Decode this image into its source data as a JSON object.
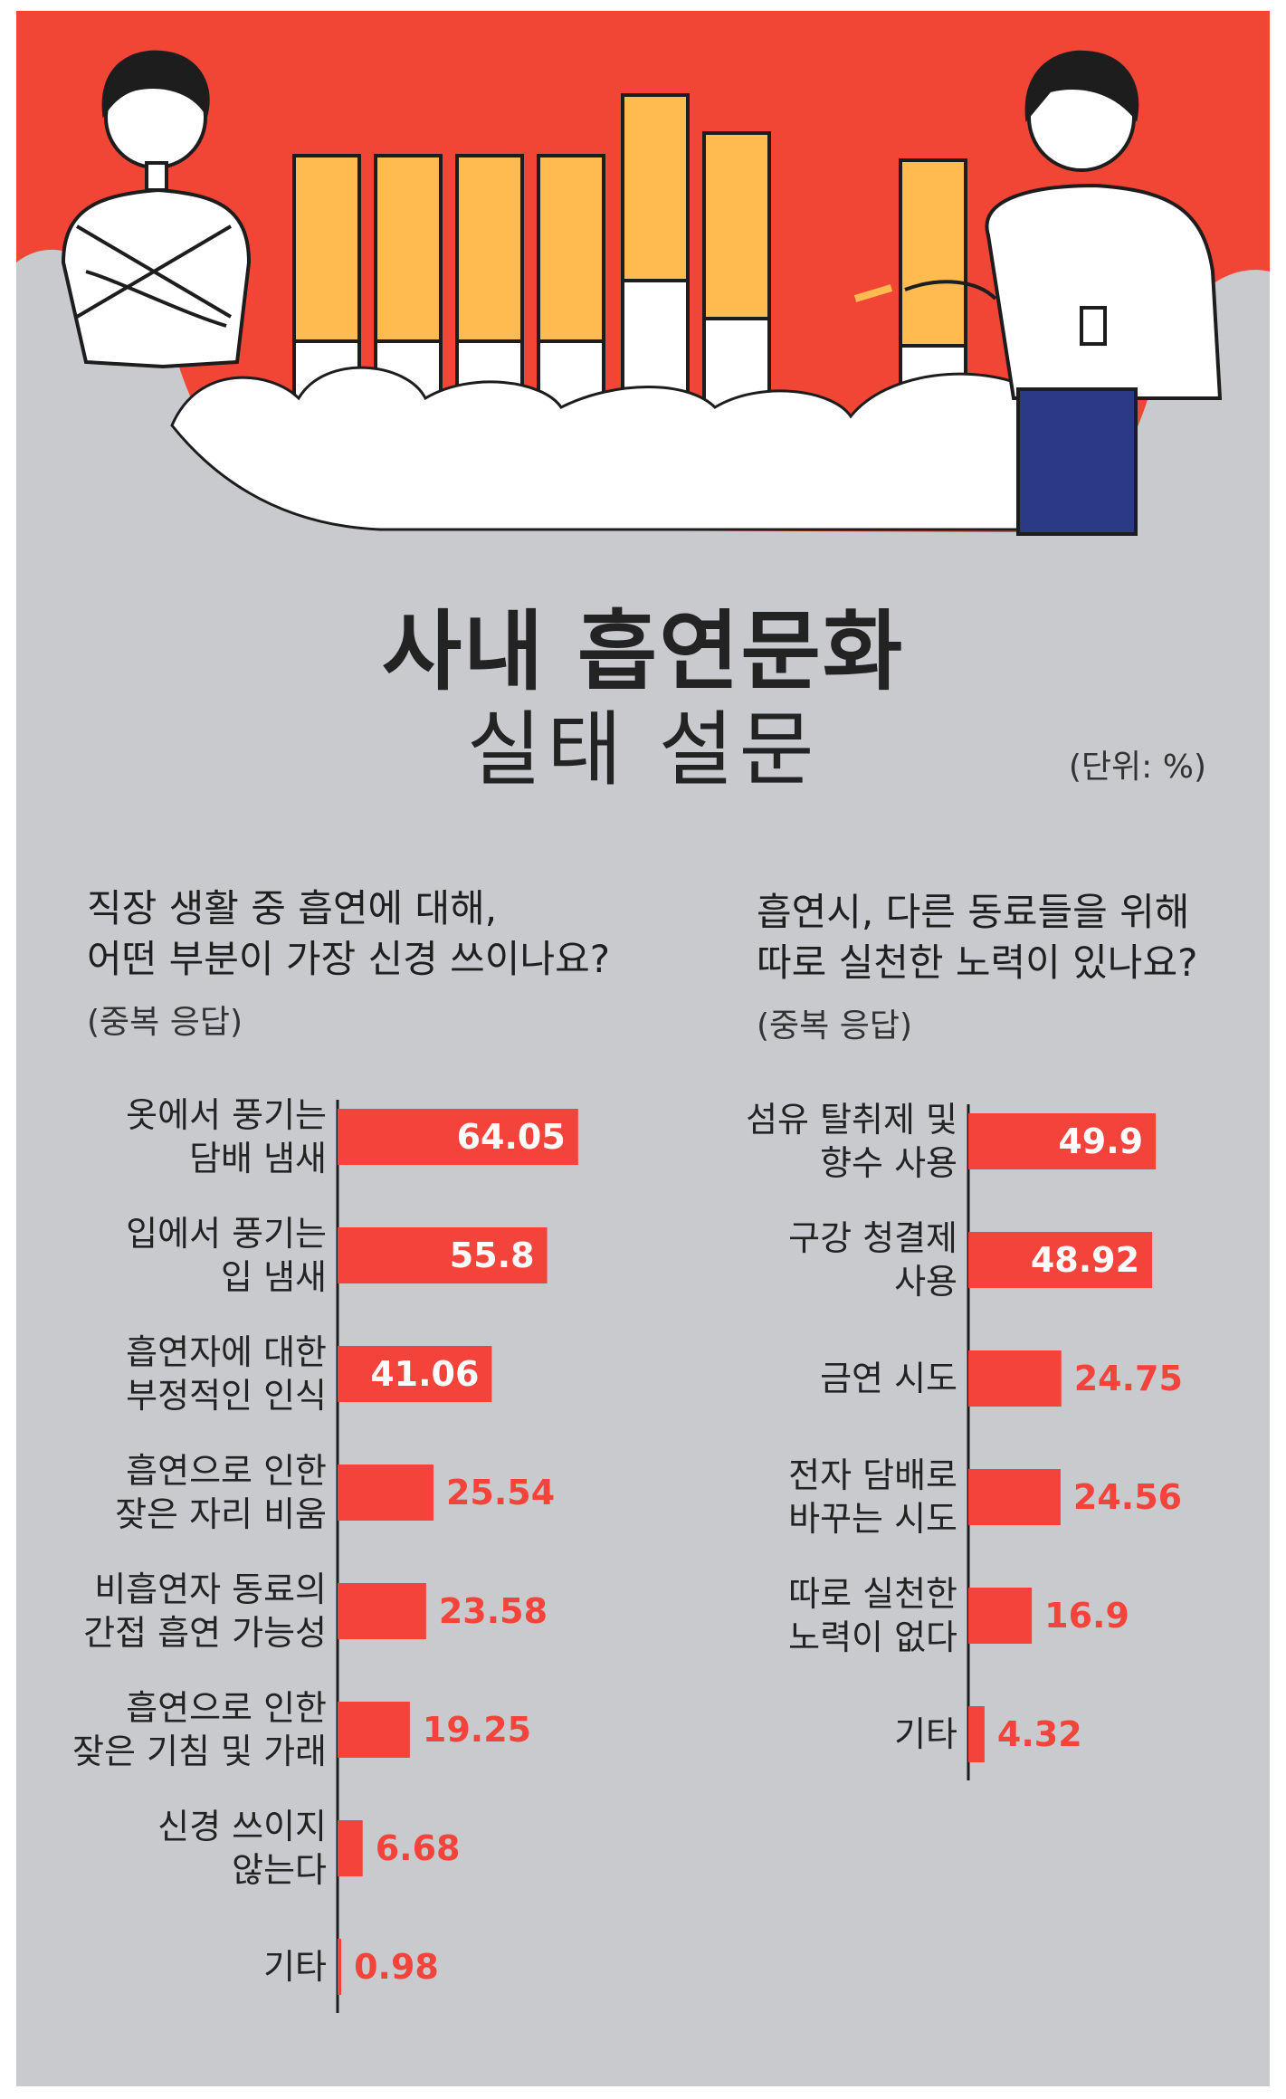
{
  "title": {
    "line1": "사내 흡연문화",
    "line2": "실태 설문"
  },
  "unit": "(단위: %)",
  "colors": {
    "bar": "#f3433a",
    "background_gray": "#c9cacd",
    "header_red": "#f14535",
    "cigarette_filter": "#ffbb4f",
    "text": "#232323"
  },
  "chart_data": [
    {
      "type": "bar",
      "orientation": "horizontal",
      "title_lines": [
        "직장 생활 중 흡연에 대해,",
        "어떤 부분이 가장 신경 쓰이나요?"
      ],
      "note": "(중복 응답)",
      "categories": [
        [
          "옷에서 풍기는",
          "담배 냄새"
        ],
        [
          "입에서 풍기는",
          "입 냄새"
        ],
        [
          "흡연자에 대한",
          "부정적인 인식"
        ],
        [
          "흡연으로 인한",
          "잦은 자리 비움"
        ],
        [
          "비흡연자 동료의",
          "간접 흡연 가능성"
        ],
        [
          "흡연으로 인한",
          "잦은 기침 및 가래"
        ],
        [
          "신경 쓰이지",
          "않는다"
        ],
        [
          "기타"
        ]
      ],
      "values": [
        64.05,
        55.8,
        41.06,
        25.54,
        23.58,
        19.25,
        6.68,
        0.98
      ],
      "value_labels": [
        "64.05",
        "55.8",
        "41.06",
        "25.54",
        "23.58",
        "19.25",
        "6.68",
        "0.98"
      ],
      "xlim": [
        0,
        70
      ]
    },
    {
      "type": "bar",
      "orientation": "horizontal",
      "title_lines": [
        "흡연시, 다른 동료들을 위해",
        "따로 실천한 노력이 있나요?"
      ],
      "note": "(중복 응답)",
      "categories": [
        [
          "섬유 탈취제 및",
          "향수 사용"
        ],
        [
          "구강 청결제",
          "사용"
        ],
        [
          "금연 시도"
        ],
        [
          "전자 담배로",
          "바꾸는 시도"
        ],
        [
          "따로 실천한",
          "노력이 없다"
        ],
        [
          "기타"
        ]
      ],
      "values": [
        49.9,
        48.92,
        24.75,
        24.56,
        16.9,
        4.32
      ],
      "value_labels": [
        "49.9",
        "48.92",
        "24.75",
        "24.56",
        "16.9",
        "4.32"
      ],
      "xlim": [
        0,
        70
      ]
    }
  ]
}
